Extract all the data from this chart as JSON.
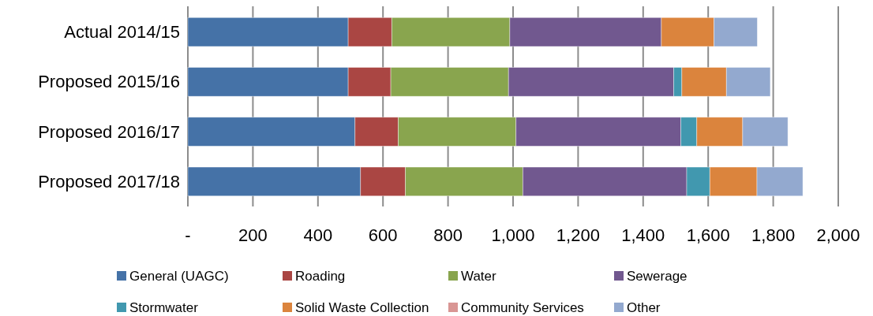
{
  "chart_data": {
    "type": "bar",
    "orientation": "horizontal",
    "stacked": true,
    "categories": [
      "Actual 2014/15",
      "Proposed 2015/16",
      "Proposed 2016/17",
      "Proposed 2017/18"
    ],
    "series": [
      {
        "name": "General (UAGC)",
        "color": "#4572a7",
        "values": [
          493,
          493,
          514,
          531
        ]
      },
      {
        "name": "Roading",
        "color": "#aa4643",
        "values": [
          134,
          131,
          133,
          138
        ]
      },
      {
        "name": "Water",
        "color": "#89a54e",
        "values": [
          363,
          362,
          362,
          361
        ]
      },
      {
        "name": "Sewerage",
        "color": "#71588f",
        "values": [
          466,
          508,
          507,
          504
        ]
      },
      {
        "name": "Stormwater",
        "color": "#4198af",
        "values": [
          0,
          25,
          49,
          71
        ]
      },
      {
        "name": "Solid Waste Collection",
        "color": "#db843d",
        "values": [
          162,
          137,
          141,
          145
        ]
      },
      {
        "name": "Community Services",
        "color": "#d99694",
        "values": [
          0,
          0,
          0,
          0
        ]
      },
      {
        "name": "Other",
        "color": "#93a9cf",
        "values": [
          133,
          135,
          139,
          141
        ]
      }
    ],
    "xlim": [
      0,
      2000
    ],
    "xticks": [
      {
        "value": 0,
        "label": "-"
      },
      200,
      400,
      600,
      800,
      {
        "value": 1000,
        "label": "1,000"
      },
      {
        "value": 1200,
        "label": "1,200"
      },
      {
        "value": 1400,
        "label": "1,400"
      },
      {
        "value": 1600,
        "label": "1,600"
      },
      {
        "value": 1800,
        "label": "1,800"
      },
      {
        "value": 2000,
        "label": "2,000"
      }
    ],
    "grid": "x",
    "legend": "bottom"
  }
}
